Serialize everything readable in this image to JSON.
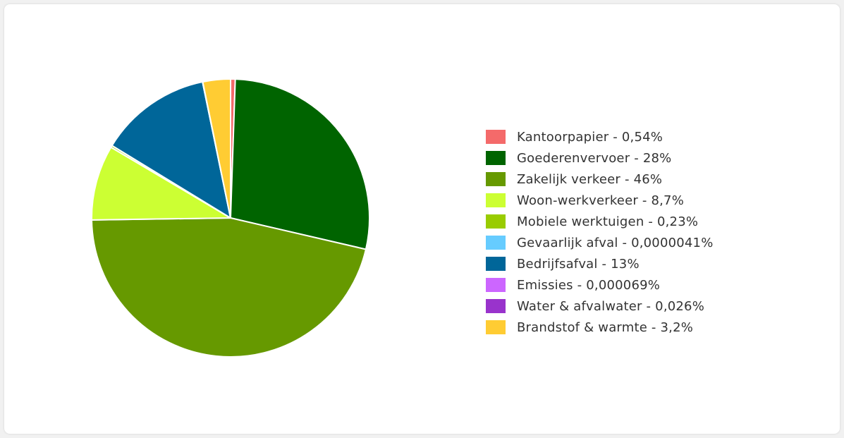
{
  "chart_data": {
    "type": "pie",
    "title": "",
    "legend_position": "right",
    "slices": [
      {
        "label": "Kantoorpapier - 0,54%",
        "name": "Kantoorpapier",
        "value": 0.54,
        "color": "#f46a6a"
      },
      {
        "label": "Goederenvervoer - 28%",
        "name": "Goederenvervoer",
        "value": 28,
        "color": "#006400"
      },
      {
        "label": "Zakelijk verkeer - 46%",
        "name": "Zakelijk verkeer",
        "value": 46,
        "color": "#669900"
      },
      {
        "label": "Woon-werkverkeer - 8,7%",
        "name": "Woon-werkverkeer",
        "value": 8.7,
        "color": "#ccff33"
      },
      {
        "label": "Mobiele werktuigen - 0,23%",
        "name": "Mobiele werktuigen",
        "value": 0.23,
        "color": "#99cc00"
      },
      {
        "label": "Gevaarlijk afval - 0,0000041%",
        "name": "Gevaarlijk afval",
        "value": 4.1e-06,
        "color": "#66ccff"
      },
      {
        "label": "Bedrijfsafval - 13%",
        "name": "Bedrijfsafval",
        "value": 13,
        "color": "#006699"
      },
      {
        "label": "Emissies - 0,000069%",
        "name": "Emissies",
        "value": 6.9e-05,
        "color": "#cc66ff"
      },
      {
        "label": "Water & afvalwater - 0,026%",
        "name": "Water & afvalwater",
        "value": 0.026,
        "color": "#9933cc"
      },
      {
        "label": "Brandstof & warmte - 3,2%",
        "name": "Brandstof & warmte",
        "value": 3.2,
        "color": "#ffcc33"
      }
    ]
  }
}
